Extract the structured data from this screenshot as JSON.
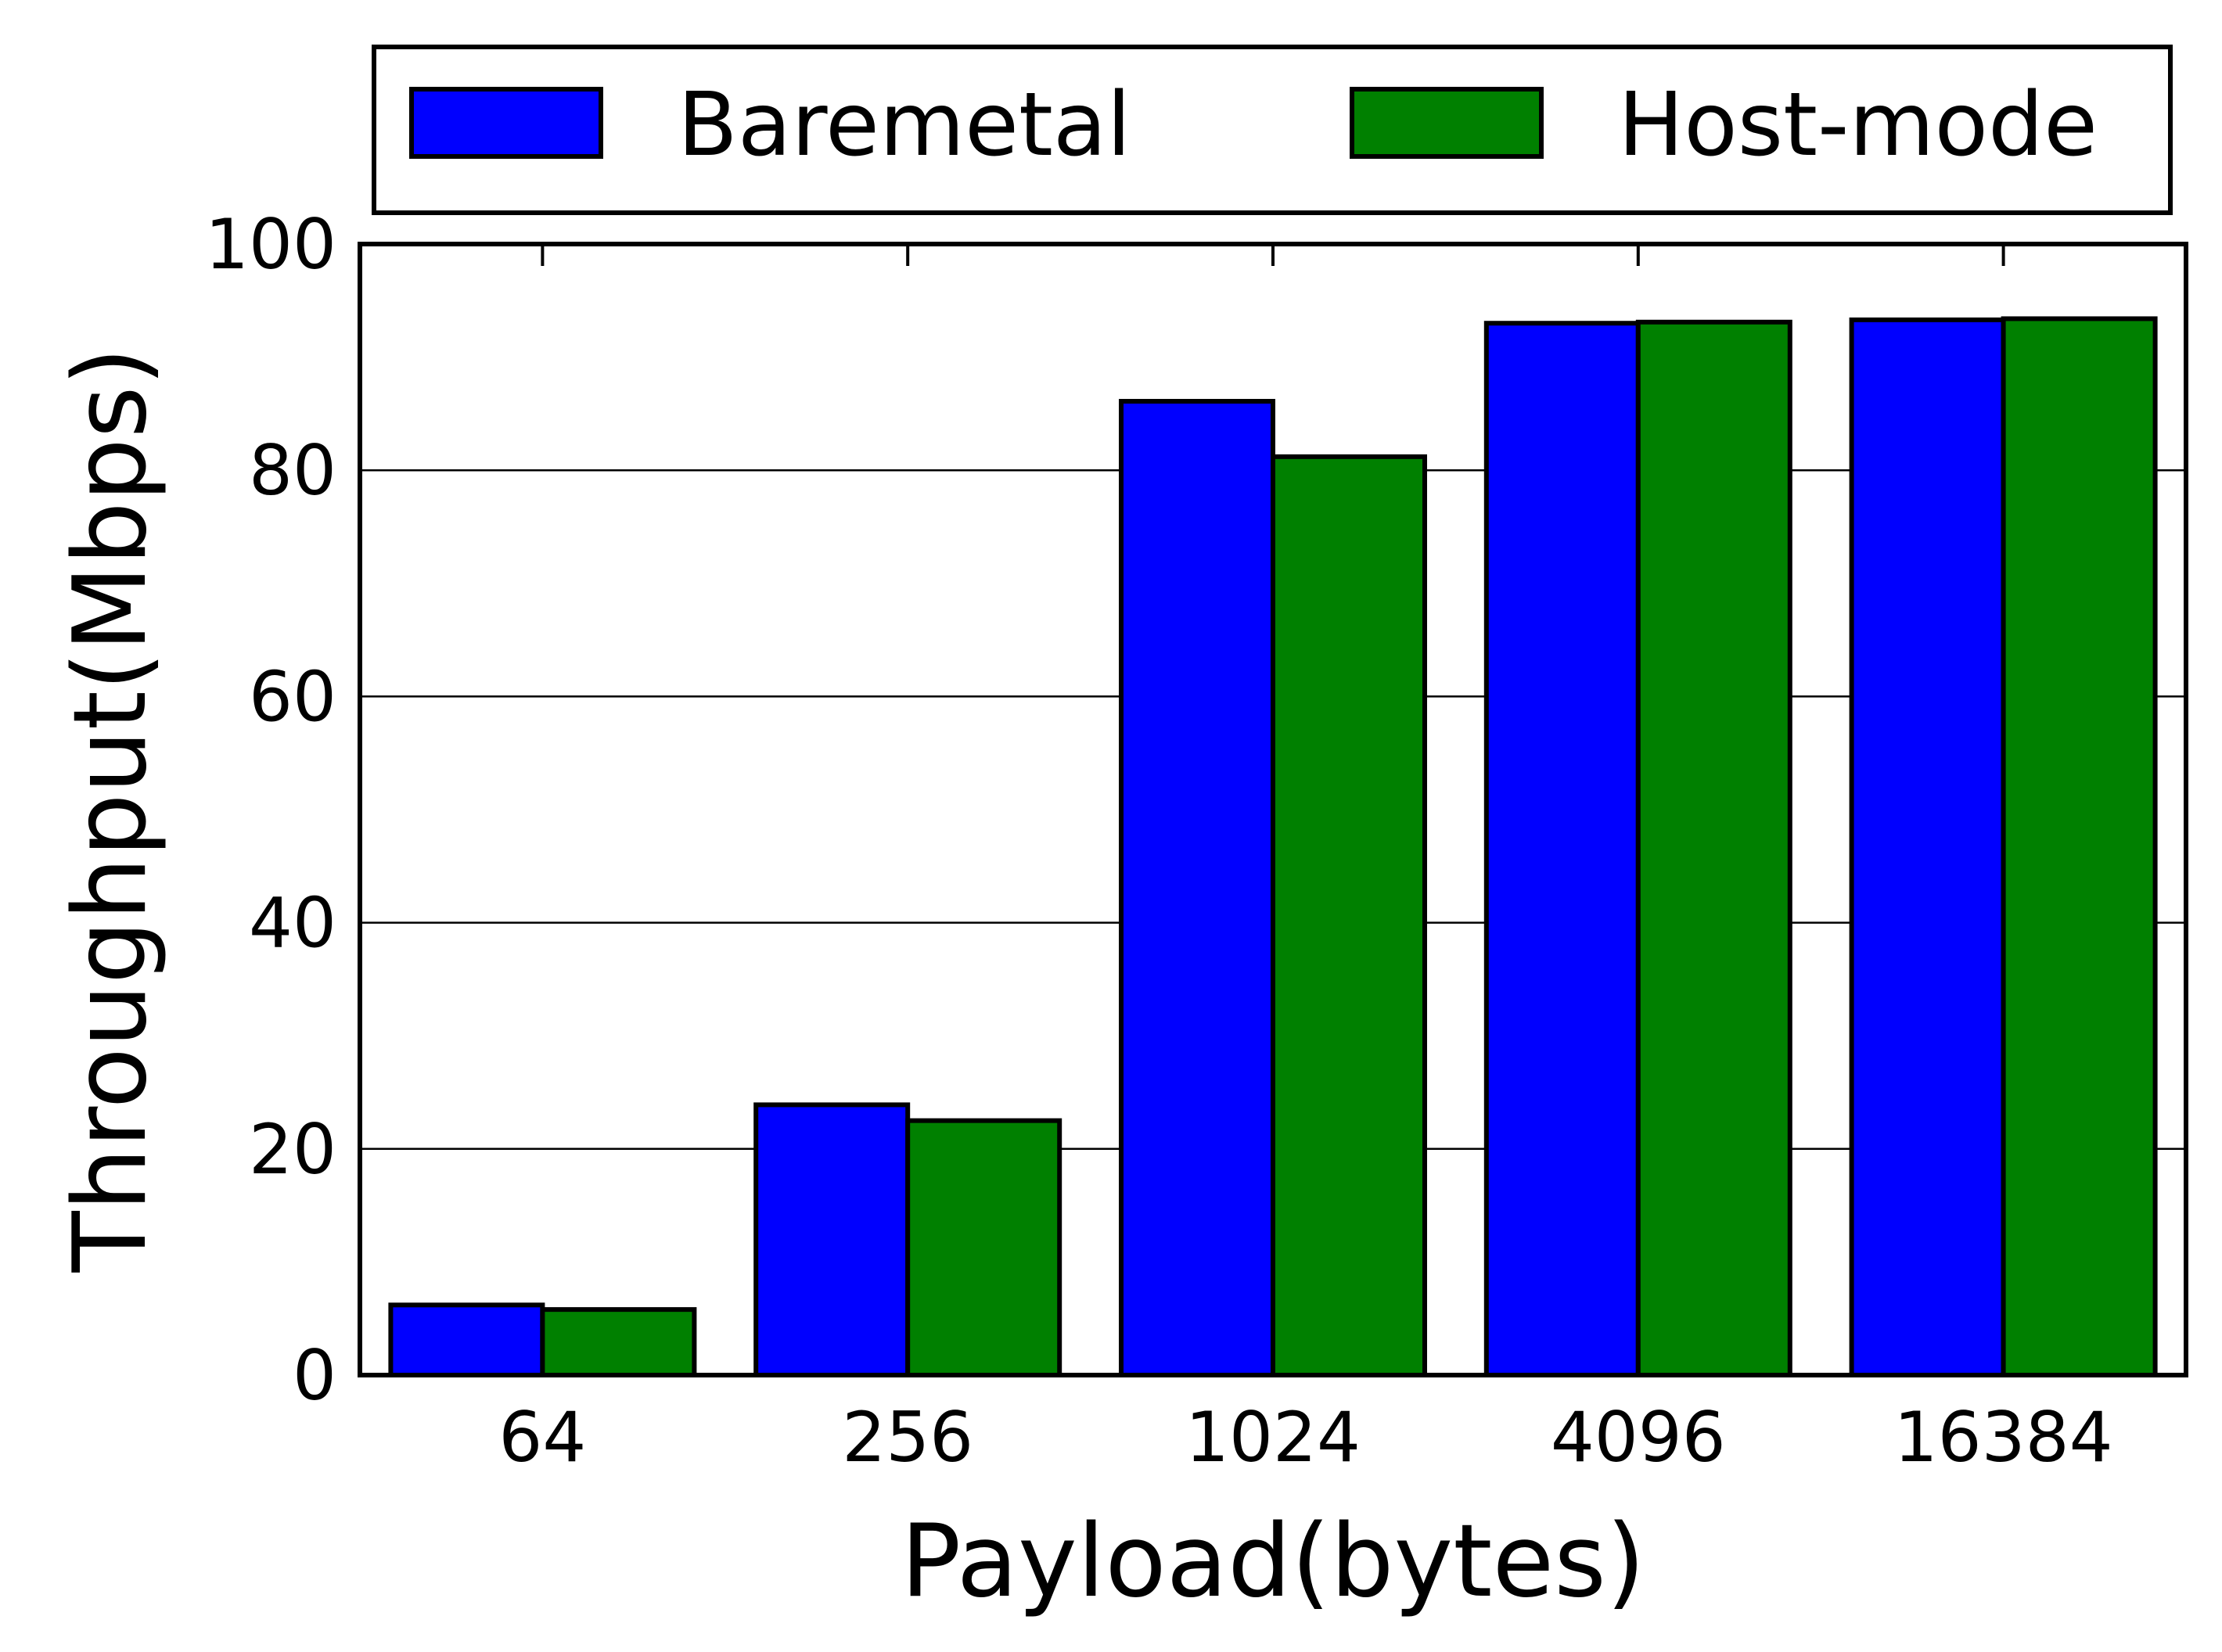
{
  "chart_data": {
    "type": "bar",
    "xlabel": "Payload(bytes)",
    "ylabel": "Throughput(Mbps)",
    "ylim": [
      0,
      100
    ],
    "yticks": [
      0,
      20,
      40,
      60,
      80,
      100
    ],
    "grid": "horizontal",
    "legend_position": "top",
    "categories": [
      "64",
      "256",
      "1024",
      "4096",
      "16384"
    ],
    "series": [
      {
        "name": "Baremetal",
        "color": "#0000ff",
        "values": [
          6.2,
          23.9,
          86.1,
          93.0,
          93.3
        ]
      },
      {
        "name": "Host-mode",
        "color": "#008000",
        "values": [
          5.8,
          22.5,
          81.2,
          93.1,
          93.4
        ]
      }
    ]
  }
}
